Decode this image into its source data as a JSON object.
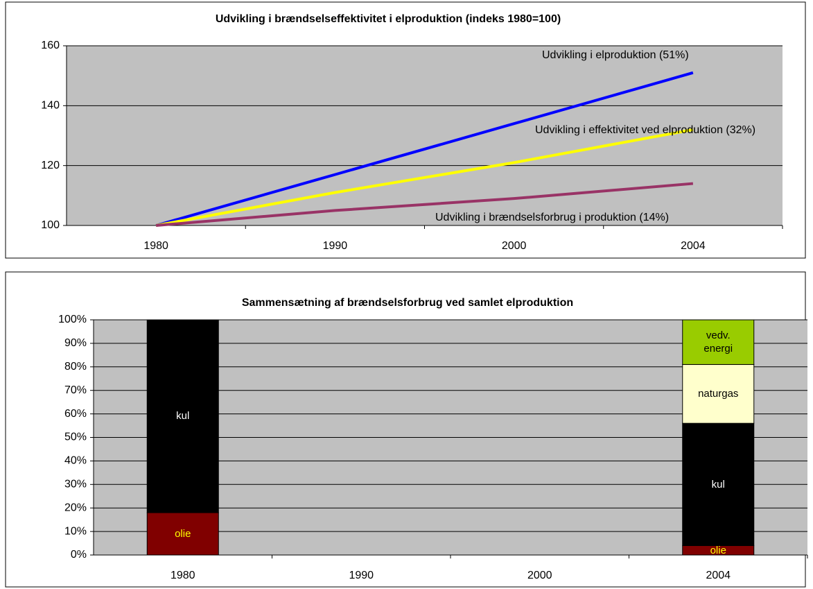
{
  "chart_data": [
    {
      "type": "line",
      "title": "Udvikling i brændselseffektivitet i elproduktion (indeks 1980=100)",
      "categories": [
        "1980",
        "1990",
        "2000",
        "2004"
      ],
      "series": [
        {
          "name": "Udvikling i elproduktion (51%)",
          "color": "#0000ff",
          "values": [
            100,
            117,
            134,
            151
          ]
        },
        {
          "name": "Udvikling i effektivitet ved elproduktion (32%)",
          "color": "#ffff00",
          "values": [
            100,
            111,
            121,
            132
          ]
        },
        {
          "name": "Udvikling i brændselsforbrug i produktion (14%)",
          "color": "#993366",
          "values": [
            100,
            105,
            109,
            114
          ]
        }
      ],
      "ylim": [
        100,
        160
      ],
      "yticks": [
        100,
        120,
        140,
        160
      ],
      "grid": true
    },
    {
      "type": "bar",
      "stacked": true,
      "title": "Sammensætning af brændselsforbrug ved samlet elproduktion",
      "categories": [
        "1980",
        "1990",
        "2000",
        "2004"
      ],
      "series": [
        {
          "name": "olie",
          "color": "#800000",
          "label_color": "#ffff00",
          "values": [
            18,
            null,
            null,
            4
          ]
        },
        {
          "name": "kul",
          "color": "#000000",
          "label_color": "#ffffff",
          "values": [
            82,
            null,
            null,
            52
          ]
        },
        {
          "name": "naturgas",
          "color": "#ffffcc",
          "label_color": "#000000",
          "values": [
            null,
            null,
            null,
            25
          ]
        },
        {
          "name": "vedv. energi",
          "color": "#99cc00",
          "label_color": "#000000",
          "values": [
            null,
            null,
            null,
            19
          ]
        }
      ],
      "ylim": [
        0,
        100
      ],
      "yticks": [
        {
          "value": 0,
          "label": "0%"
        },
        {
          "value": 10,
          "label": "10%"
        },
        {
          "value": 20,
          "label": "20%"
        },
        {
          "value": 30,
          "label": "30%"
        },
        {
          "value": 40,
          "label": "40%"
        },
        {
          "value": 50,
          "label": "50%"
        },
        {
          "value": 60,
          "label": "60%"
        },
        {
          "value": 70,
          "label": "70%"
        },
        {
          "value": 80,
          "label": "80%"
        },
        {
          "value": 90,
          "label": "90%"
        },
        {
          "value": 100,
          "label": "100%"
        }
      ],
      "grid": true
    }
  ]
}
